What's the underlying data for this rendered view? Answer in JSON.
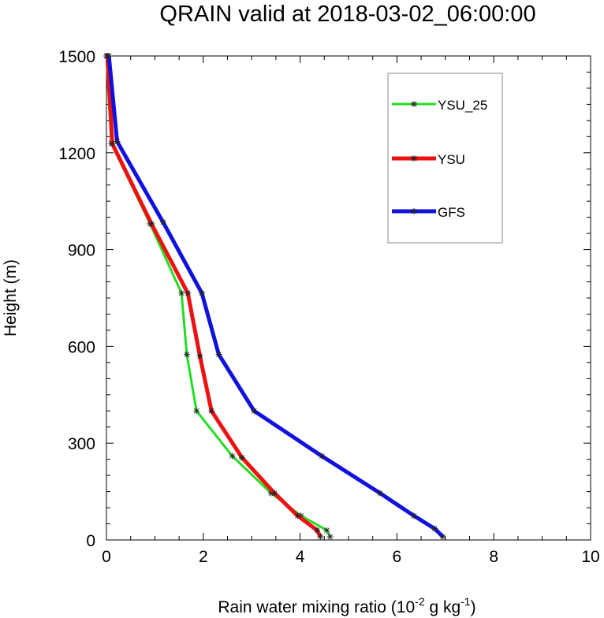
{
  "chart_data": {
    "type": "line",
    "title": "QRAIN valid at 2018-03-02_06:00:00",
    "xlabel_main": "Rain water mixing ratio (10",
    "xlabel_exp1": "-2",
    "xlabel_mid": " g kg",
    "xlabel_exp2": "-1",
    "xlabel_end": ")",
    "ylabel": "Height (m)",
    "xlim": [
      0,
      10
    ],
    "ylim": [
      0,
      1500
    ],
    "xticks": [
      "0",
      "2",
      "4",
      "6",
      "8",
      "10"
    ],
    "yticks": [
      "0",
      "300",
      "600",
      "900",
      "1200",
      "1500"
    ],
    "grid": false,
    "legend_position": "top-right",
    "series": [
      {
        "name": "YSU_25",
        "color": "#22dd22",
        "x": [
          4.62,
          4.55,
          4.02,
          3.4,
          2.6,
          1.86,
          1.66,
          1.55,
          0.9,
          0.1,
          0.0
        ],
        "y": [
          10,
          30,
          75,
          145,
          260,
          400,
          575,
          765,
          980,
          1230,
          1500
        ]
      },
      {
        "name": "YSU",
        "color": "#ee1111",
        "x": [
          4.42,
          4.35,
          3.95,
          3.47,
          2.8,
          2.17,
          1.93,
          1.68,
          0.93,
          0.12,
          0.02
        ],
        "y": [
          10,
          30,
          75,
          145,
          255,
          400,
          570,
          765,
          980,
          1228,
          1500
        ]
      },
      {
        "name": "GFS",
        "color": "#1111dd",
        "x": [
          6.95,
          6.78,
          6.35,
          5.65,
          4.45,
          3.05,
          2.32,
          1.97,
          1.17,
          0.22,
          0.05
        ],
        "y": [
          10,
          35,
          75,
          145,
          260,
          400,
          575,
          765,
          985,
          1235,
          1500
        ]
      }
    ]
  }
}
